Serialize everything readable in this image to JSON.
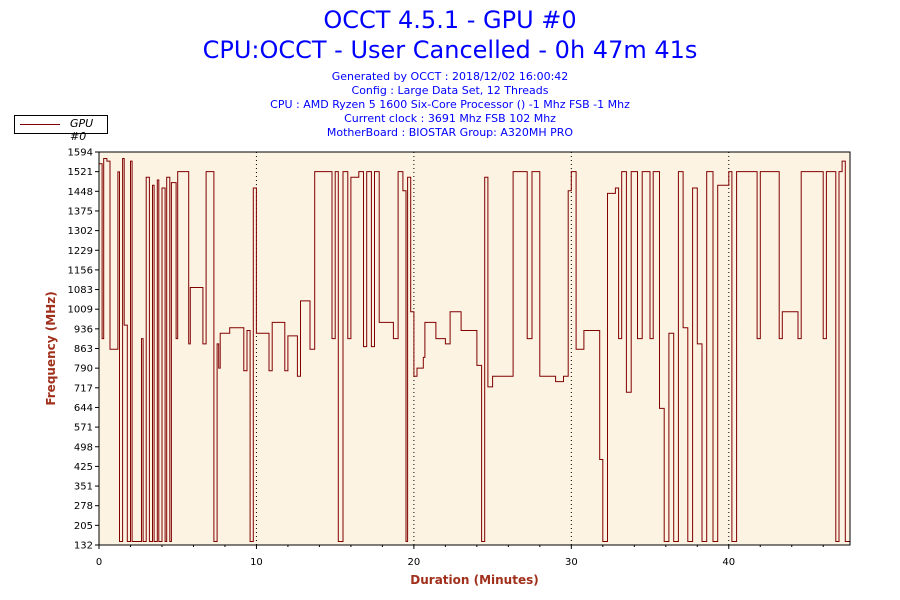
{
  "title": "OCCT 4.5.1 - GPU #0",
  "subtitle": "CPU:OCCT - User Cancelled - 0h 47m 41s",
  "info_lines": [
    "Generated by OCCT : 2018/12/02 16:00:42",
    "Config : Large Data Set, 12 Threads",
    "CPU : AMD Ryzen 5 1600 Six-Core Processor () -1 Mhz FSB -1 Mhz",
    "Current clock : 3691 Mhz FSB 102 Mhz",
    "MotherBoard : BIOSTAR Group: A320MH PRO"
  ],
  "colors": {
    "title": "#0000ff",
    "series": "#800000",
    "plot_bg": "#fdf3e3",
    "axis_label": "#a0301c"
  },
  "chart_data": {
    "type": "line",
    "title": "OCCT 4.5.1 - GPU #0",
    "subtitle": "CPU:OCCT - User Cancelled - 0h 47m 41s",
    "xlabel": "Duration (Minutes)",
    "ylabel": "Frequency (MHz)",
    "xlim": [
      0,
      47.7
    ],
    "ylim": [
      132,
      1594
    ],
    "x_ticks": [
      "0",
      "10",
      "20",
      "30",
      "40"
    ],
    "y_ticks": [
      "132",
      "205",
      "278",
      "351",
      "425",
      "498",
      "571",
      "644",
      "717",
      "790",
      "863",
      "936",
      "1009",
      "1083",
      "1156",
      "1229",
      "1302",
      "1375",
      "1448",
      "1521",
      "1594"
    ],
    "grid": "vertical dotted at x ticks",
    "legend": "top-left, outside plot",
    "series": [
      {
        "name": "GPU #0",
        "points": [
          [
            0,
            1550
          ],
          [
            0.2,
            900
          ],
          [
            0.3,
            1570
          ],
          [
            0.5,
            1560
          ],
          [
            0.7,
            860
          ],
          [
            1.0,
            860
          ],
          [
            1.2,
            1520
          ],
          [
            1.3,
            145
          ],
          [
            1.5,
            1570
          ],
          [
            1.6,
            950
          ],
          [
            1.8,
            145
          ],
          [
            2.0,
            1560
          ],
          [
            2.1,
            145
          ],
          [
            2.5,
            145
          ],
          [
            2.7,
            900
          ],
          [
            2.8,
            145
          ],
          [
            3.0,
            1500
          ],
          [
            3.2,
            145
          ],
          [
            3.4,
            1470
          ],
          [
            3.5,
            145
          ],
          [
            3.7,
            1490
          ],
          [
            3.8,
            145
          ],
          [
            4.0,
            1460
          ],
          [
            4.2,
            145
          ],
          [
            4.3,
            1500
          ],
          [
            4.5,
            145
          ],
          [
            4.6,
            1480
          ],
          [
            4.9,
            900
          ],
          [
            5.0,
            1521
          ],
          [
            5.5,
            1521
          ],
          [
            5.7,
            880
          ],
          [
            5.8,
            1090
          ],
          [
            6.5,
            1090
          ],
          [
            6.6,
            880
          ],
          [
            6.8,
            1521
          ],
          [
            7.2,
            1521
          ],
          [
            7.3,
            145
          ],
          [
            7.5,
            880
          ],
          [
            7.6,
            790
          ],
          [
            7.7,
            920
          ],
          [
            8.3,
            940
          ],
          [
            9.0,
            940
          ],
          [
            9.2,
            780
          ],
          [
            9.4,
            930
          ],
          [
            9.6,
            145
          ],
          [
            9.8,
            1460
          ],
          [
            10.0,
            920
          ],
          [
            10.7,
            920
          ],
          [
            10.8,
            780
          ],
          [
            11.0,
            960
          ],
          [
            11.6,
            960
          ],
          [
            11.8,
            780
          ],
          [
            12.0,
            910
          ],
          [
            12.5,
            910
          ],
          [
            12.6,
            760
          ],
          [
            12.8,
            1040
          ],
          [
            13.3,
            1040
          ],
          [
            13.4,
            860
          ],
          [
            13.7,
            1521
          ],
          [
            14.6,
            1521
          ],
          [
            14.8,
            900
          ],
          [
            15.0,
            1521
          ],
          [
            15.2,
            145
          ],
          [
            15.5,
            1521
          ],
          [
            15.8,
            900
          ],
          [
            16.0,
            1500
          ],
          [
            16.5,
            1521
          ],
          [
            16.8,
            870
          ],
          [
            17.0,
            1521
          ],
          [
            17.3,
            870
          ],
          [
            17.5,
            1521
          ],
          [
            17.8,
            960
          ],
          [
            18.5,
            960
          ],
          [
            18.7,
            900
          ],
          [
            19.0,
            1521
          ],
          [
            19.3,
            1450
          ],
          [
            19.5,
            145
          ],
          [
            19.6,
            1500
          ],
          [
            19.8,
            1000
          ],
          [
            20.0,
            760
          ],
          [
            20.2,
            790
          ],
          [
            20.6,
            830
          ],
          [
            20.7,
            960
          ],
          [
            21.2,
            960
          ],
          [
            21.4,
            900
          ],
          [
            22.0,
            880
          ],
          [
            22.3,
            1000
          ],
          [
            22.8,
            1000
          ],
          [
            23.0,
            930
          ],
          [
            23.8,
            930
          ],
          [
            24.0,
            800
          ],
          [
            24.3,
            145
          ],
          [
            24.5,
            1500
          ],
          [
            24.7,
            720
          ],
          [
            25.0,
            760
          ],
          [
            26.0,
            760
          ],
          [
            26.3,
            1521
          ],
          [
            27.0,
            1521
          ],
          [
            27.2,
            900
          ],
          [
            27.5,
            1521
          ],
          [
            28.0,
            760
          ],
          [
            28.5,
            760
          ],
          [
            29.0,
            740
          ],
          [
            29.5,
            760
          ],
          [
            29.8,
            1450
          ],
          [
            30.0,
            1521
          ],
          [
            30.3,
            860
          ],
          [
            30.8,
            930
          ],
          [
            31.5,
            930
          ],
          [
            31.8,
            450
          ],
          [
            32.0,
            145
          ],
          [
            32.3,
            1440
          ],
          [
            32.8,
            1460
          ],
          [
            33.0,
            900
          ],
          [
            33.2,
            1521
          ],
          [
            33.5,
            700
          ],
          [
            33.8,
            1521
          ],
          [
            34.2,
            900
          ],
          [
            34.5,
            1521
          ],
          [
            35.0,
            900
          ],
          [
            35.2,
            1521
          ],
          [
            35.6,
            640
          ],
          [
            35.9,
            145
          ],
          [
            36.2,
            920
          ],
          [
            36.5,
            145
          ],
          [
            36.8,
            1521
          ],
          [
            37.1,
            940
          ],
          [
            37.4,
            145
          ],
          [
            37.7,
            1460
          ],
          [
            38.0,
            880
          ],
          [
            38.3,
            145
          ],
          [
            38.6,
            1521
          ],
          [
            39.0,
            145
          ],
          [
            39.3,
            1470
          ],
          [
            39.8,
            1470
          ],
          [
            40.0,
            1521
          ],
          [
            40.2,
            145
          ],
          [
            40.5,
            1521
          ],
          [
            41.5,
            1521
          ],
          [
            41.8,
            900
          ],
          [
            42.0,
            1521
          ],
          [
            43.0,
            1521
          ],
          [
            43.2,
            900
          ],
          [
            43.4,
            1000
          ],
          [
            44.2,
            1000
          ],
          [
            44.4,
            900
          ],
          [
            44.6,
            1521
          ],
          [
            45.8,
            1521
          ],
          [
            46.0,
            900
          ],
          [
            46.2,
            1521
          ],
          [
            46.8,
            145
          ],
          [
            47.0,
            1521
          ],
          [
            47.2,
            1560
          ],
          [
            47.4,
            145
          ],
          [
            47.7,
            145
          ]
        ]
      }
    ]
  }
}
